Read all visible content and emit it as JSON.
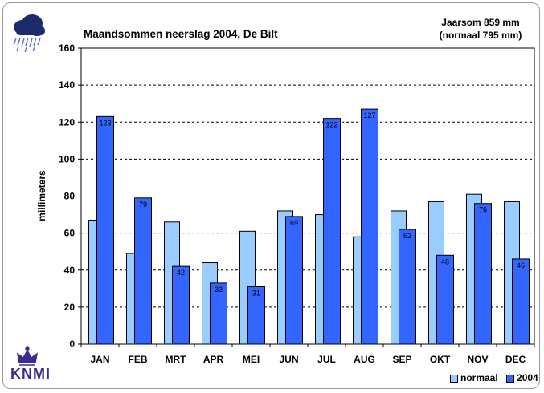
{
  "chart_data": {
    "type": "bar",
    "title": "Maandsommen neerslag 2004, De Bilt",
    "xlabel": "",
    "ylabel": "millimeters",
    "ylim": [
      0,
      160
    ],
    "yticks": [
      0,
      20,
      40,
      60,
      80,
      100,
      120,
      140,
      160
    ],
    "grid": true,
    "legend_position": "bottom-right",
    "categories": [
      "JAN",
      "FEB",
      "MRT",
      "APR",
      "MEI",
      "JUN",
      "JUL",
      "AUG",
      "SEP",
      "OKT",
      "NOV",
      "DEC"
    ],
    "series": [
      {
        "name": "normaal",
        "color": "#99ccff",
        "values": [
          67,
          49,
          66,
          44,
          61,
          72,
          70,
          58,
          72,
          77,
          81,
          77
        ],
        "labels_shown": false
      },
      {
        "name": "2004",
        "color": "#3366ff",
        "values": [
          123,
          79,
          42,
          33,
          31,
          69,
          122,
          127,
          62,
          48,
          76,
          46
        ],
        "labels_shown": true
      }
    ]
  },
  "annual": {
    "line1": "Jaarsom 859  mm",
    "line2": "(normaal  795 mm)"
  },
  "logo": {
    "name": "KNMI",
    "icon": "crown-icon"
  },
  "weather_icon": "rain-cloud-icon"
}
